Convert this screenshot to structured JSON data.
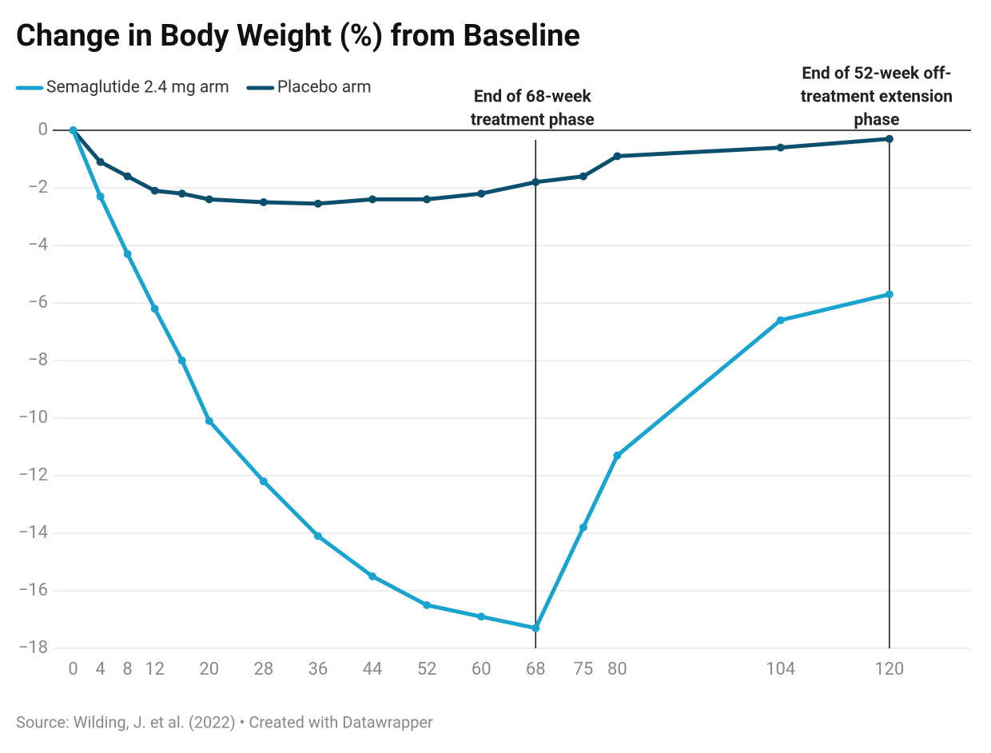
{
  "chart_data": {
    "type": "line",
    "title": "Change in Body Weight (%) from Baseline",
    "source": "Source: Wilding, J. et al. (2022) • Created with Datawrapper",
    "x": [
      0,
      4,
      8,
      12,
      16,
      20,
      28,
      36,
      44,
      52,
      60,
      68,
      75,
      80,
      104,
      120
    ],
    "series": [
      {
        "name": "Semaglutide 2.4 mg arm",
        "color": "#1ba3d0",
        "values": [
          0,
          -2.3,
          -4.3,
          -6.2,
          -8.0,
          -10.1,
          -12.2,
          -14.1,
          -15.5,
          -16.5,
          -16.9,
          -17.3,
          -13.8,
          -11.3,
          -6.6,
          -5.7
        ]
      },
      {
        "name": "Placebo arm",
        "color": "#0b4f6c",
        "values": [
          0,
          -1.1,
          -1.6,
          -2.1,
          -2.2,
          -2.4,
          -2.5,
          -2.55,
          -2.4,
          -2.4,
          -2.2,
          -1.8,
          -1.6,
          -0.9,
          -0.6,
          -0.3
        ]
      }
    ],
    "xlim": [
      -3,
      132
    ],
    "xticks": [
      0,
      4,
      8,
      12,
      20,
      28,
      36,
      44,
      52,
      60,
      68,
      75,
      80,
      104,
      120
    ],
    "ylim": [
      -18,
      0
    ],
    "yticks": [
      0,
      {
        "value": -2,
        "label": "−2"
      },
      {
        "value": -4,
        "label": "−4"
      },
      {
        "value": -6,
        "label": "−6"
      },
      {
        "value": -8,
        "label": "−8"
      },
      {
        "value": -10,
        "label": "−10"
      },
      {
        "value": -12,
        "label": "−12"
      },
      {
        "value": -14,
        "label": "−14"
      },
      {
        "value": -16,
        "label": "−16"
      },
      {
        "value": -18,
        "label": "−18"
      }
    ],
    "grid": true,
    "annotations": [
      {
        "x": 68,
        "lines": [
          "End of 68-week",
          "treatment phase"
        ]
      },
      {
        "x": 120,
        "lines": [
          "End of 52-week off-",
          "treatment extension",
          "phase"
        ]
      }
    ]
  }
}
